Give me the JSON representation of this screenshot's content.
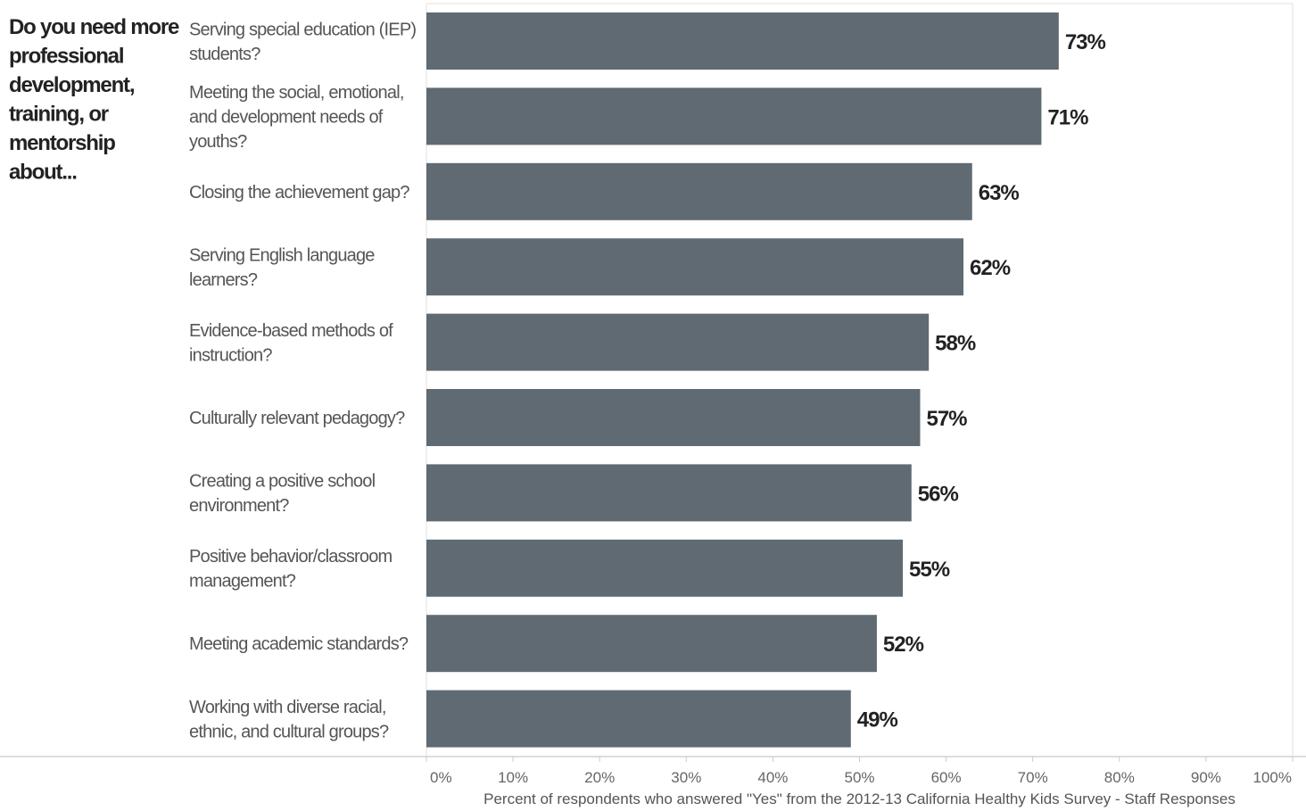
{
  "chart_data": {
    "type": "bar",
    "orientation": "horizontal",
    "row_header": "Do you need more professional development, training, or mentorship about...",
    "xlabel": "Percent of respondents who answered \"Yes\" from the 2012-13 California Healthy Kids Survey - Staff Responses",
    "xlim": [
      0,
      100
    ],
    "xticks": [
      "0%",
      "10%",
      "20%",
      "30%",
      "40%",
      "50%",
      "60%",
      "70%",
      "80%",
      "90%",
      "100%"
    ],
    "categories": [
      "Serving special education (IEP) students?",
      "Meeting the social, emotional, and development needs of youths?",
      "Closing the achievement gap?",
      "Serving English language learners?",
      "Evidence-based methods of instruction?",
      "Culturally relevant pedagogy?",
      "Creating a positive school environment?",
      "Positive behavior/classroom management?",
      "Meeting academic standards?",
      "Working with diverse racial, ethnic, and cultural groups?"
    ],
    "values": [
      73,
      71,
      63,
      62,
      58,
      57,
      56,
      55,
      52,
      49
    ],
    "value_labels": [
      "73%",
      "71%",
      "63%",
      "62%",
      "58%",
      "57%",
      "56%",
      "55%",
      "52%",
      "49%"
    ],
    "bar_color": "#5f6a72",
    "grid": false
  }
}
